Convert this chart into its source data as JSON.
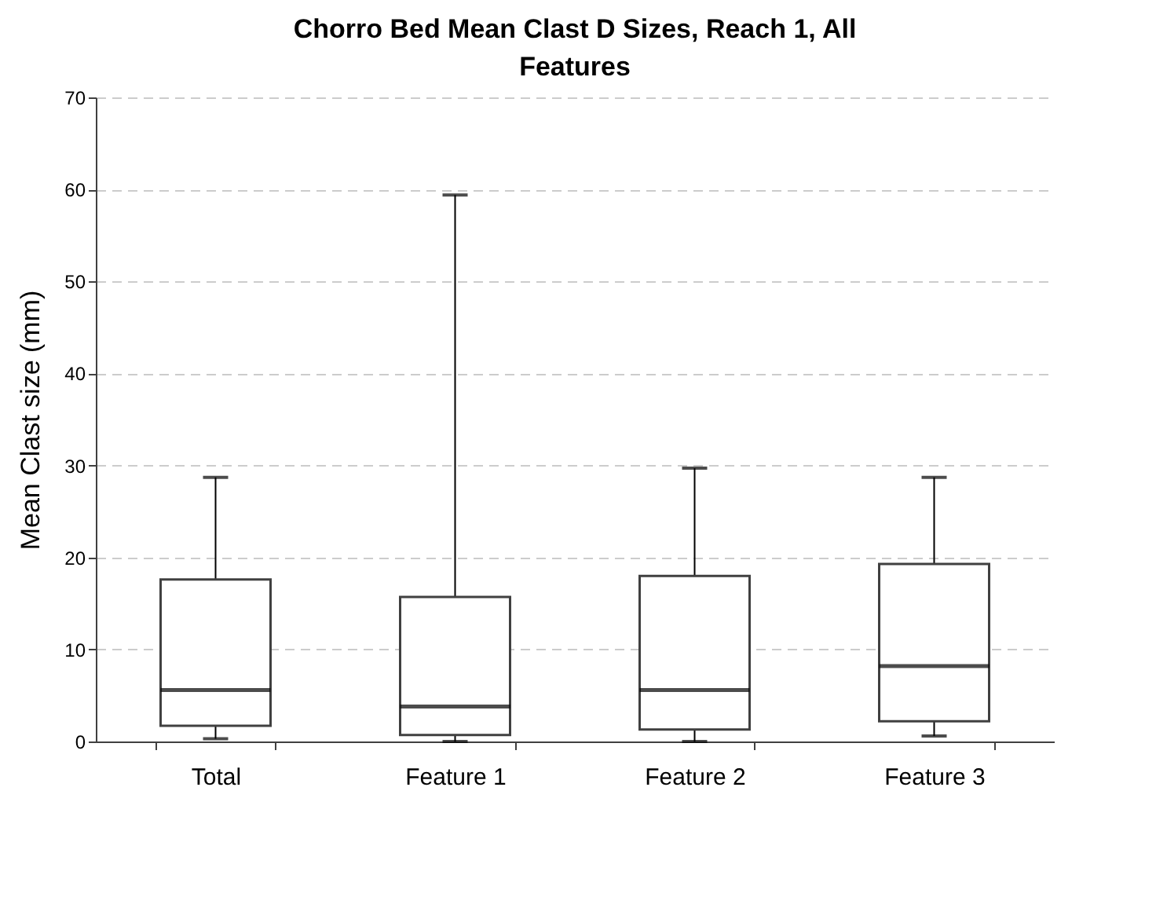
{
  "chart_data": {
    "type": "box",
    "title": "Chorro Bed Mean Clast D Sizes, Reach 1, All Features",
    "ylabel": "Mean Clast size (mm)",
    "categories": [
      "Total",
      "Feature 1",
      "Feature 2",
      "Feature 3"
    ],
    "boxes": [
      {
        "low": 0.3,
        "q1": 1.7,
        "median": 5.6,
        "q3": 17.6,
        "high": 28.7
      },
      {
        "low": 0,
        "q1": 0.7,
        "median": 3.8,
        "q3": 15.7,
        "high": 59.4
      },
      {
        "low": 0,
        "q1": 1.3,
        "median": 5.6,
        "q3": 18.0,
        "high": 29.7
      },
      {
        "low": 0.6,
        "q1": 2.2,
        "median": 8.2,
        "q3": 19.3,
        "high": 28.7
      }
    ],
    "ylim": [
      0,
      70
    ],
    "yticks": [
      0,
      10,
      20,
      30,
      40,
      50,
      60,
      70
    ],
    "grid": "y"
  }
}
